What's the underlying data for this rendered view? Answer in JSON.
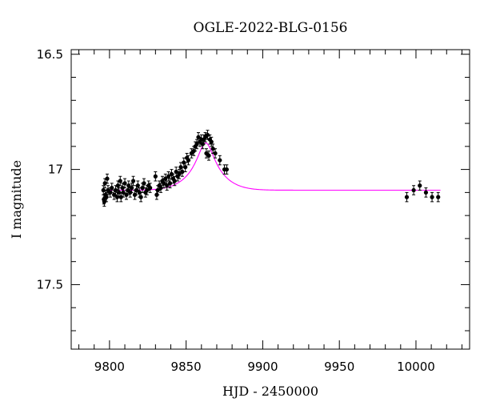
{
  "chart_data": {
    "type": "scatter",
    "title": "OGLE-2022-BLG-0156",
    "xlabel": "HJD - 2450000",
    "ylabel": "I magnitude",
    "xlim": [
      9775,
      10035
    ],
    "ylim": [
      17.78,
      16.48
    ],
    "y_inverted": true,
    "x_ticks": [
      9800,
      9850,
      9900,
      9950,
      10000
    ],
    "x_tick_labels": [
      "9800",
      "9850",
      "9900",
      "9950",
      "10000"
    ],
    "y_ticks": [
      16.5,
      17.0,
      17.5
    ],
    "y_tick_labels": [
      "16.5",
      "17",
      "17.5"
    ],
    "grid": false,
    "colors": {
      "data": "#000000",
      "model": "#ff00ff"
    },
    "series": [
      {
        "kind": "points_with_errorbars",
        "points": [
          {
            "x": 9796.0,
            "y": 17.09,
            "err": 0.02
          },
          {
            "x": 9796.3,
            "y": 17.13,
            "err": 0.02
          },
          {
            "x": 9796.6,
            "y": 17.14,
            "err": 0.02
          },
          {
            "x": 9797.0,
            "y": 17.06,
            "err": 0.02
          },
          {
            "x": 9797.4,
            "y": 17.11,
            "err": 0.02
          },
          {
            "x": 9798.0,
            "y": 17.12,
            "err": 0.02
          },
          {
            "x": 9798.5,
            "y": 17.04,
            "err": 0.02
          },
          {
            "x": 9799.0,
            "y": 17.09,
            "err": 0.02
          },
          {
            "x": 9800.5,
            "y": 17.1,
            "err": 0.02
          },
          {
            "x": 9801.5,
            "y": 17.08,
            "err": 0.02
          },
          {
            "x": 9803.0,
            "y": 17.11,
            "err": 0.02
          },
          {
            "x": 9804.0,
            "y": 17.09,
            "err": 0.02
          },
          {
            "x": 9805.0,
            "y": 17.12,
            "err": 0.02
          },
          {
            "x": 9805.5,
            "y": 17.07,
            "err": 0.02
          },
          {
            "x": 9806.2,
            "y": 17.1,
            "err": 0.02
          },
          {
            "x": 9807.0,
            "y": 17.05,
            "err": 0.02
          },
          {
            "x": 9807.5,
            "y": 17.12,
            "err": 0.02
          },
          {
            "x": 9808.5,
            "y": 17.08,
            "err": 0.02
          },
          {
            "x": 9809.0,
            "y": 17.1,
            "err": 0.02
          },
          {
            "x": 9810.0,
            "y": 17.06,
            "err": 0.02
          },
          {
            "x": 9811.0,
            "y": 17.11,
            "err": 0.02
          },
          {
            "x": 9812.0,
            "y": 17.09,
            "err": 0.02
          },
          {
            "x": 9812.5,
            "y": 17.07,
            "err": 0.02
          },
          {
            "x": 9813.5,
            "y": 17.1,
            "err": 0.02
          },
          {
            "x": 9814.5,
            "y": 17.08,
            "err": 0.02
          },
          {
            "x": 9815.5,
            "y": 17.05,
            "err": 0.02
          },
          {
            "x": 9816.5,
            "y": 17.11,
            "err": 0.02
          },
          {
            "x": 9817.5,
            "y": 17.09,
            "err": 0.02
          },
          {
            "x": 9818.5,
            "y": 17.07,
            "err": 0.02
          },
          {
            "x": 9819.5,
            "y": 17.1,
            "err": 0.02
          },
          {
            "x": 9820.5,
            "y": 17.12,
            "err": 0.02
          },
          {
            "x": 9821.5,
            "y": 17.08,
            "err": 0.02
          },
          {
            "x": 9822.5,
            "y": 17.06,
            "err": 0.02
          },
          {
            "x": 9823.5,
            "y": 17.1,
            "err": 0.02
          },
          {
            "x": 9824.5,
            "y": 17.09,
            "err": 0.02
          },
          {
            "x": 9825.5,
            "y": 17.07,
            "err": 0.02
          },
          {
            "x": 9826.5,
            "y": 17.08,
            "err": 0.02
          },
          {
            "x": 9830.0,
            "y": 17.03,
            "err": 0.02
          },
          {
            "x": 9830.8,
            "y": 17.11,
            "err": 0.02
          },
          {
            "x": 9831.5,
            "y": 17.09,
            "err": 0.02
          },
          {
            "x": 9832.5,
            "y": 17.07,
            "err": 0.02
          },
          {
            "x": 9833.5,
            "y": 17.08,
            "err": 0.02
          },
          {
            "x": 9834.5,
            "y": 17.05,
            "err": 0.02
          },
          {
            "x": 9835.5,
            "y": 17.06,
            "err": 0.02
          },
          {
            "x": 9836.5,
            "y": 17.04,
            "err": 0.02
          },
          {
            "x": 9837.5,
            "y": 17.07,
            "err": 0.02
          },
          {
            "x": 9838.5,
            "y": 17.03,
            "err": 0.02
          },
          {
            "x": 9839.5,
            "y": 17.06,
            "err": 0.02
          },
          {
            "x": 9840.5,
            "y": 17.02,
            "err": 0.02
          },
          {
            "x": 9841.5,
            "y": 17.04,
            "err": 0.02
          },
          {
            "x": 9842.5,
            "y": 17.05,
            "err": 0.02
          },
          {
            "x": 9843.5,
            "y": 17.01,
            "err": 0.02
          },
          {
            "x": 9844.5,
            "y": 17.03,
            "err": 0.02
          },
          {
            "x": 9845.5,
            "y": 17.02,
            "err": 0.02
          },
          {
            "x": 9846.5,
            "y": 16.99,
            "err": 0.02
          },
          {
            "x": 9847.5,
            "y": 17.01,
            "err": 0.02
          },
          {
            "x": 9848.5,
            "y": 16.97,
            "err": 0.02
          },
          {
            "x": 9849.5,
            "y": 16.99,
            "err": 0.02
          },
          {
            "x": 9850.5,
            "y": 16.95,
            "err": 0.02
          },
          {
            "x": 9851.5,
            "y": 16.96,
            "err": 0.02
          },
          {
            "x": 9853.5,
            "y": 16.93,
            "err": 0.02
          },
          {
            "x": 9855.0,
            "y": 16.92,
            "err": 0.02
          },
          {
            "x": 9856.0,
            "y": 16.9,
            "err": 0.02
          },
          {
            "x": 9857.0,
            "y": 16.89,
            "err": 0.02
          },
          {
            "x": 9858.0,
            "y": 16.86,
            "err": 0.02
          },
          {
            "x": 9859.0,
            "y": 16.88,
            "err": 0.02
          },
          {
            "x": 9860.0,
            "y": 16.87,
            "err": 0.02
          },
          {
            "x": 9860.8,
            "y": 16.89,
            "err": 0.02
          },
          {
            "x": 9861.5,
            "y": 16.87,
            "err": 0.02
          },
          {
            "x": 9862.5,
            "y": 16.86,
            "err": 0.02
          },
          {
            "x": 9863.2,
            "y": 16.93,
            "err": 0.02
          },
          {
            "x": 9864.0,
            "y": 16.85,
            "err": 0.02
          },
          {
            "x": 9864.8,
            "y": 16.94,
            "err": 0.02
          },
          {
            "x": 9865.5,
            "y": 16.87,
            "err": 0.02
          },
          {
            "x": 9866.5,
            "y": 16.88,
            "err": 0.02
          },
          {
            "x": 9867.5,
            "y": 16.91,
            "err": 0.02
          },
          {
            "x": 9869.0,
            "y": 16.93,
            "err": 0.02
          },
          {
            "x": 9872.0,
            "y": 16.96,
            "err": 0.02
          },
          {
            "x": 9875.0,
            "y": 17.0,
            "err": 0.02
          },
          {
            "x": 9876.5,
            "y": 17.0,
            "err": 0.02
          },
          {
            "x": 9994.0,
            "y": 17.12,
            "err": 0.02
          },
          {
            "x": 9998.5,
            "y": 17.09,
            "err": 0.02
          },
          {
            "x": 10002.5,
            "y": 17.07,
            "err": 0.02
          },
          {
            "x": 10006.5,
            "y": 17.1,
            "err": 0.02
          },
          {
            "x": 10010.5,
            "y": 17.12,
            "err": 0.02
          },
          {
            "x": 10014.5,
            "y": 17.12,
            "err": 0.02
          }
        ]
      },
      {
        "kind": "model_curve",
        "model": {
          "baseline": 17.09,
          "peak_x": 9862.8,
          "peak_y": 16.885,
          "width": 8.5
        },
        "x_range": [
          9796,
          10016
        ]
      }
    ]
  }
}
